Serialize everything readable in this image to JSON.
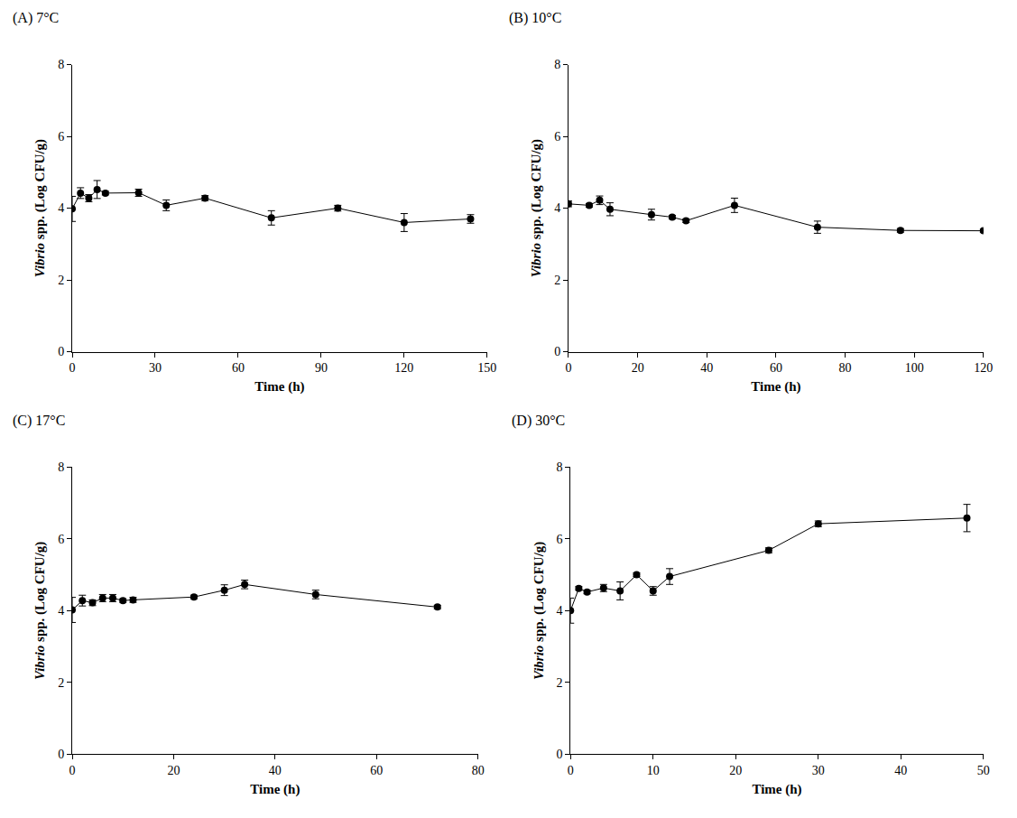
{
  "chart_data": [
    {
      "type": "line",
      "title": "(A) 7°C",
      "x_label": "Time (h)",
      "y_label": "Vibrio spp. (Log CFU/g)",
      "x": [
        0,
        3,
        6,
        9,
        12,
        24,
        34,
        48,
        72,
        96,
        120,
        144
      ],
      "values": [
        3.98,
        4.42,
        4.28,
        4.52,
        4.42,
        4.43,
        4.08,
        4.28,
        3.73,
        4.0,
        3.6,
        3.7
      ],
      "errors": [
        0.35,
        0.15,
        0.1,
        0.25,
        0.05,
        0.1,
        0.15,
        0.07,
        0.2,
        0.08,
        0.25,
        0.12
      ],
      "xlim": [
        0,
        150
      ],
      "xticks": [
        0,
        30,
        60,
        90,
        120,
        150
      ],
      "ylim": [
        0,
        8
      ],
      "yticks": [
        0,
        2,
        4,
        6,
        8
      ],
      "color": "#000000",
      "marker": "circle",
      "grid": false
    },
    {
      "type": "line",
      "title": "(B) 10°C",
      "x_label": "Time (h)",
      "y_label": "Vibrio spp. (Log CFU/g)",
      "x": [
        0,
        6,
        9,
        12,
        24,
        30,
        34,
        48,
        72,
        96,
        120
      ],
      "values": [
        4.12,
        4.08,
        4.22,
        3.97,
        3.82,
        3.75,
        3.65,
        4.08,
        3.47,
        3.38,
        3.37
      ],
      "errors": [
        0.08,
        0.05,
        0.12,
        0.18,
        0.15,
        0.05,
        0.05,
        0.2,
        0.17,
        0.05,
        0.04
      ],
      "xlim": [
        0,
        120
      ],
      "xticks": [
        0,
        20,
        40,
        60,
        80,
        100,
        120
      ],
      "ylim": [
        0,
        8
      ],
      "yticks": [
        0,
        2,
        4,
        6,
        8
      ],
      "color": "#000000",
      "marker": "circle",
      "grid": false
    },
    {
      "type": "line",
      "title": "(C) 17°C",
      "x_label": "Time (h)",
      "y_label": "Vibrio spp. (Log CFU/g)",
      "x": [
        0,
        2,
        4,
        6,
        8,
        10,
        12,
        24,
        30,
        34,
        48,
        72
      ],
      "values": [
        4.02,
        4.28,
        4.22,
        4.35,
        4.35,
        4.28,
        4.3,
        4.38,
        4.57,
        4.73,
        4.45,
        4.1
      ],
      "errors": [
        0.35,
        0.15,
        0.08,
        0.1,
        0.1,
        0.05,
        0.07,
        0.05,
        0.15,
        0.12,
        0.12,
        0.05
      ],
      "xlim": [
        0,
        80
      ],
      "xticks": [
        0,
        20,
        40,
        60,
        80
      ],
      "ylim": [
        0,
        8
      ],
      "yticks": [
        0,
        2,
        4,
        6,
        8
      ],
      "color": "#000000",
      "marker": "circle",
      "grid": false
    },
    {
      "type": "line",
      "title": "(D) 30°C",
      "x_label": "Time (h)",
      "y_label": "Vibrio spp. (Log CFU/g)",
      "x": [
        0,
        1,
        2,
        4,
        6,
        8,
        10,
        12,
        24,
        30,
        48
      ],
      "values": [
        4.0,
        4.62,
        4.52,
        4.63,
        4.55,
        5.0,
        4.55,
        4.95,
        5.68,
        6.42,
        6.58
      ],
      "errors": [
        0.35,
        0.05,
        0.05,
        0.1,
        0.25,
        0.05,
        0.12,
        0.22,
        0.07,
        0.08,
        0.38
      ],
      "xlim": [
        0,
        50
      ],
      "xticks": [
        0,
        10,
        20,
        30,
        40,
        50
      ],
      "ylim": [
        0,
        8
      ],
      "yticks": [
        0,
        2,
        4,
        6,
        8
      ],
      "color": "#000000",
      "marker": "circle",
      "grid": false
    }
  ]
}
